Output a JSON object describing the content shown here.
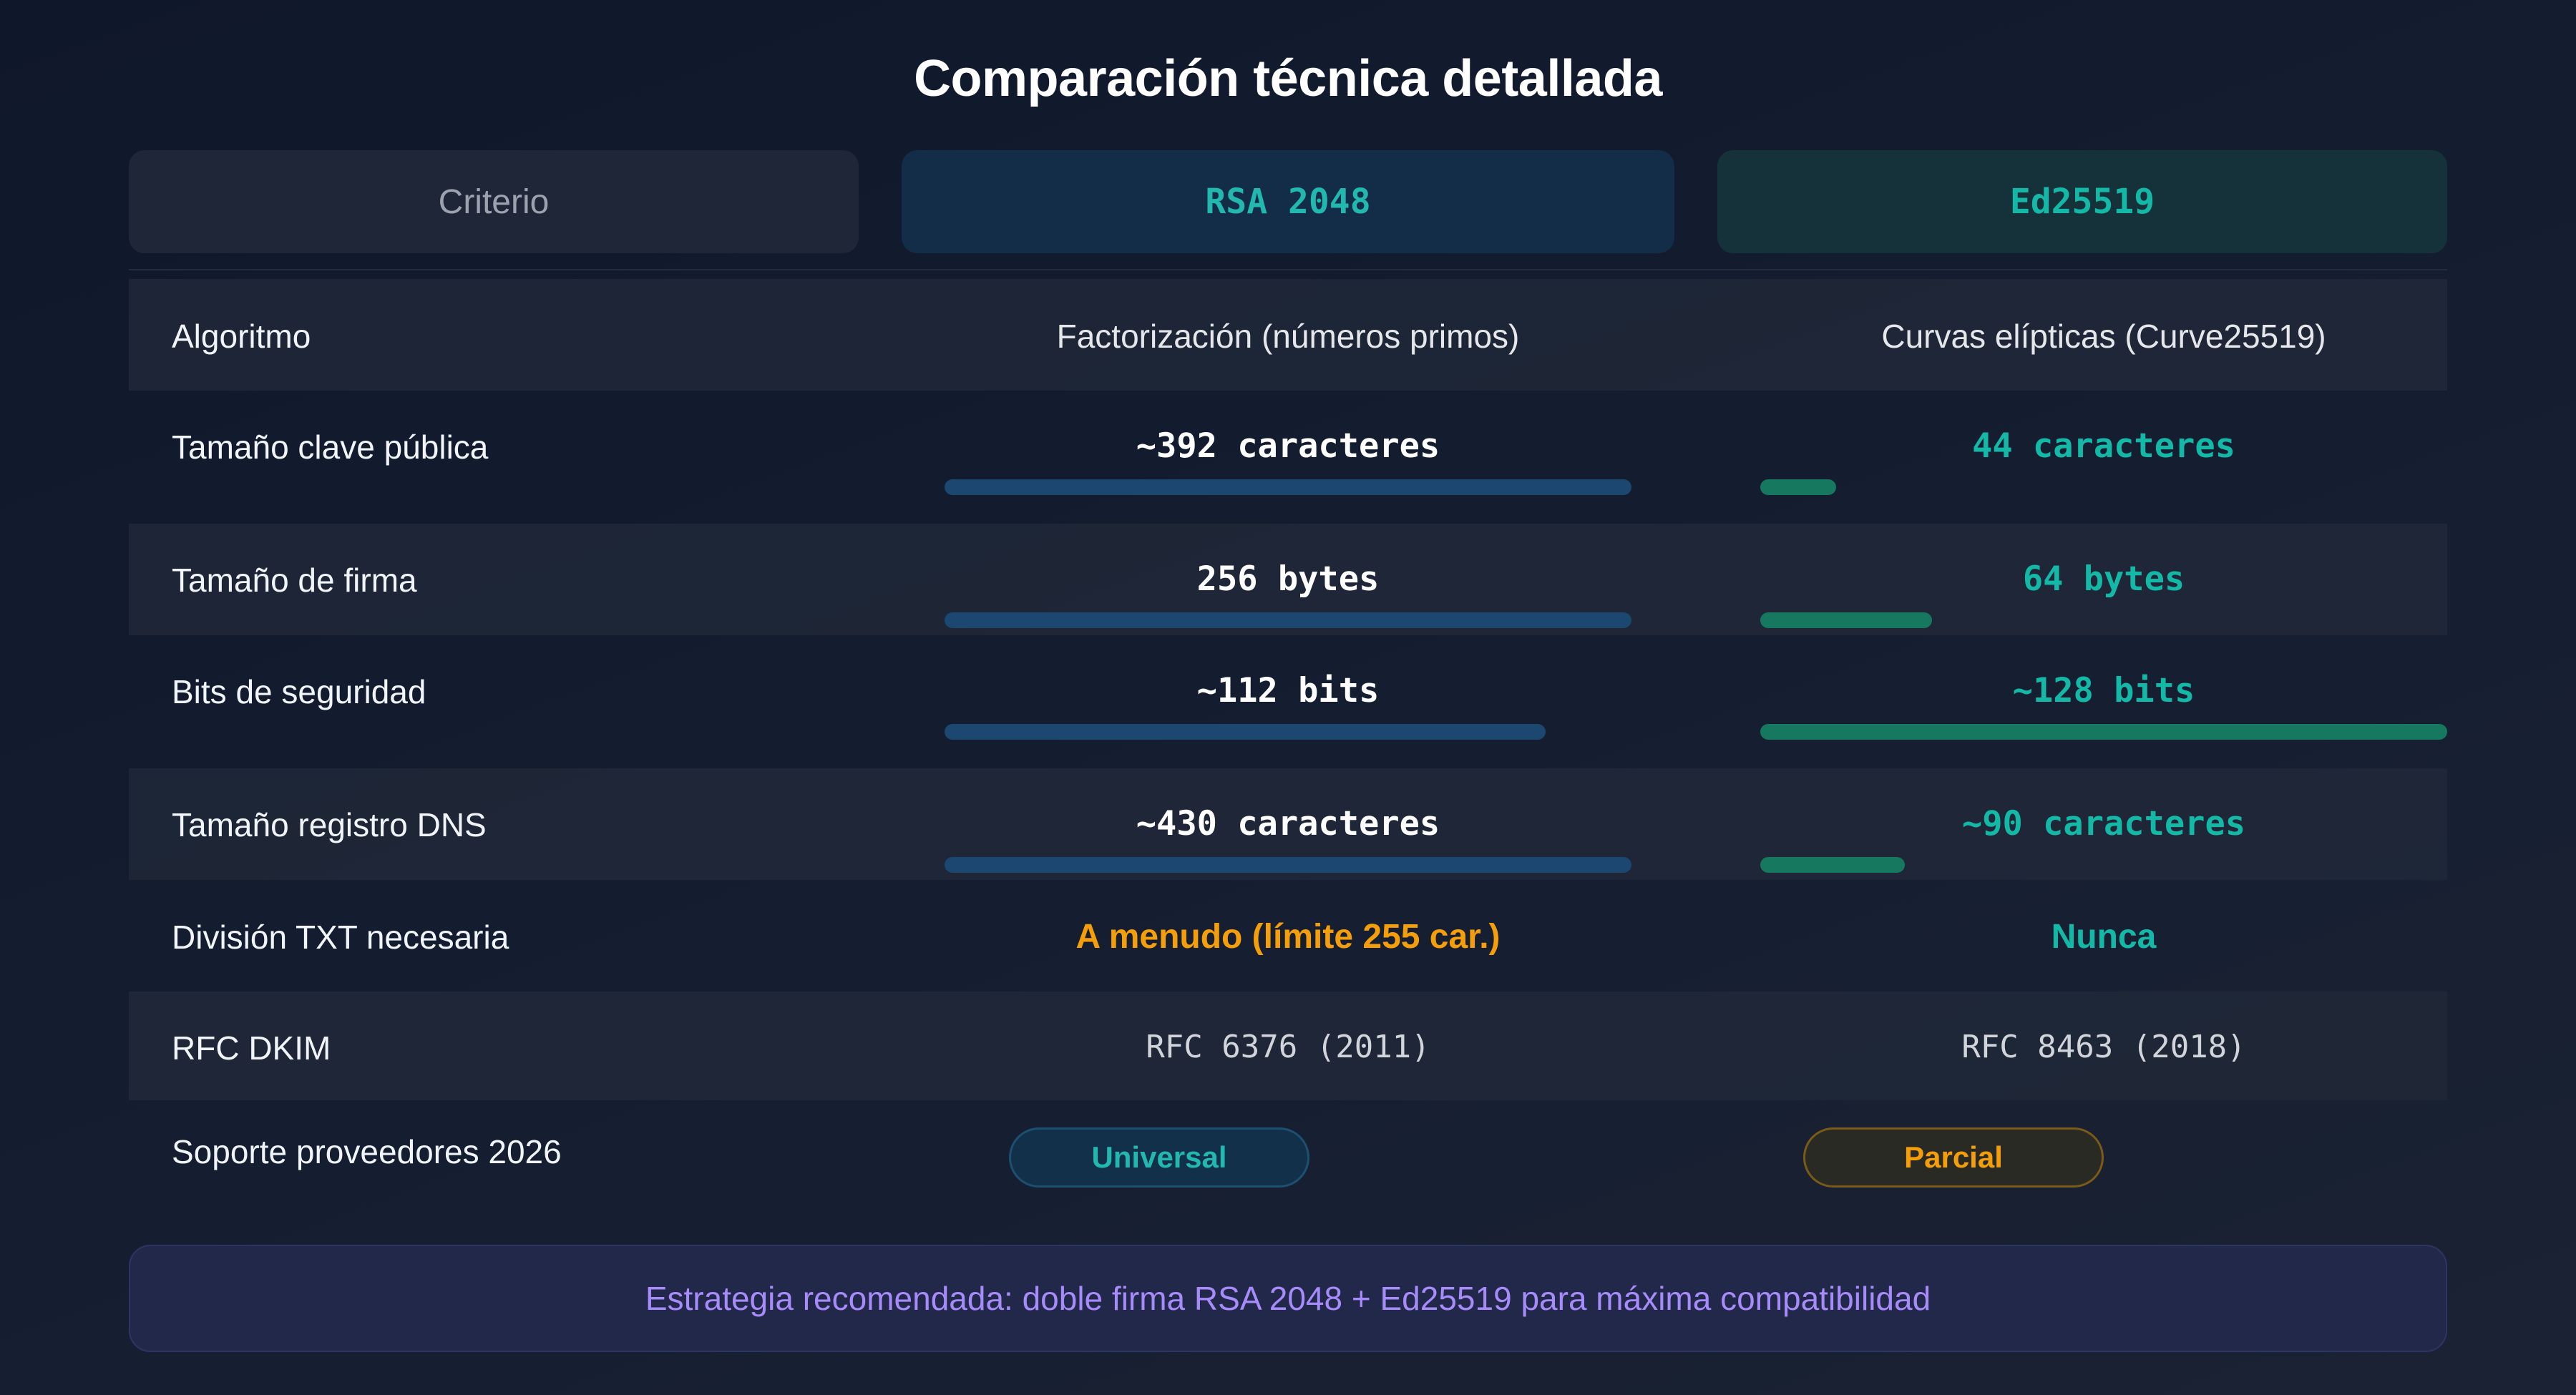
{
  "title": "Comparación técnica detallada",
  "headers": {
    "criterion": "Criterio",
    "rsa": "RSA 2048",
    "ed": "Ed25519"
  },
  "rows": [
    {
      "label": "Algoritmo",
      "rsa": "Factorización (números primos)",
      "ed": "Curvas elípticas (Curve25519)"
    },
    {
      "label": "Tamaño clave pública",
      "rsa": "~392 caracteres",
      "ed": "44 caracteres",
      "rsa_level": 1.0,
      "ed_level": 0.11
    },
    {
      "label": "Tamaño de firma",
      "rsa": "256 bytes",
      "ed": "64 bytes",
      "rsa_level": 1.0,
      "ed_level": 0.25
    },
    {
      "label": "Bits de seguridad",
      "rsa": "~112 bits",
      "ed": "~128 bits",
      "rsa_level": 0.875,
      "ed_level": 1.0
    },
    {
      "label": "Tamaño registro DNS",
      "rsa": "~430 caracteres",
      "ed": "~90 caracteres",
      "rsa_level": 1.0,
      "ed_level": 0.21
    },
    {
      "label": "División TXT necesaria",
      "rsa": "A menudo (límite 255 car.)",
      "ed": "Nunca"
    },
    {
      "label": "RFC DKIM",
      "rsa": "RFC 6376 (2011)",
      "ed": "RFC 8463 (2018)"
    },
    {
      "label": "Soporte proveedores 2026",
      "rsa": "Universal",
      "ed": "Parcial"
    }
  ],
  "footer": "Estrategia recomendada: doble firma RSA 2048 + Ed25519 para máxima compatibilidad",
  "colors": {
    "rsa_accent": "#1b4771",
    "ed_accent": "#16795f",
    "teal_text": "#14b8a6",
    "warning": "#f59e0b",
    "footer_text": "#a78bfa"
  }
}
